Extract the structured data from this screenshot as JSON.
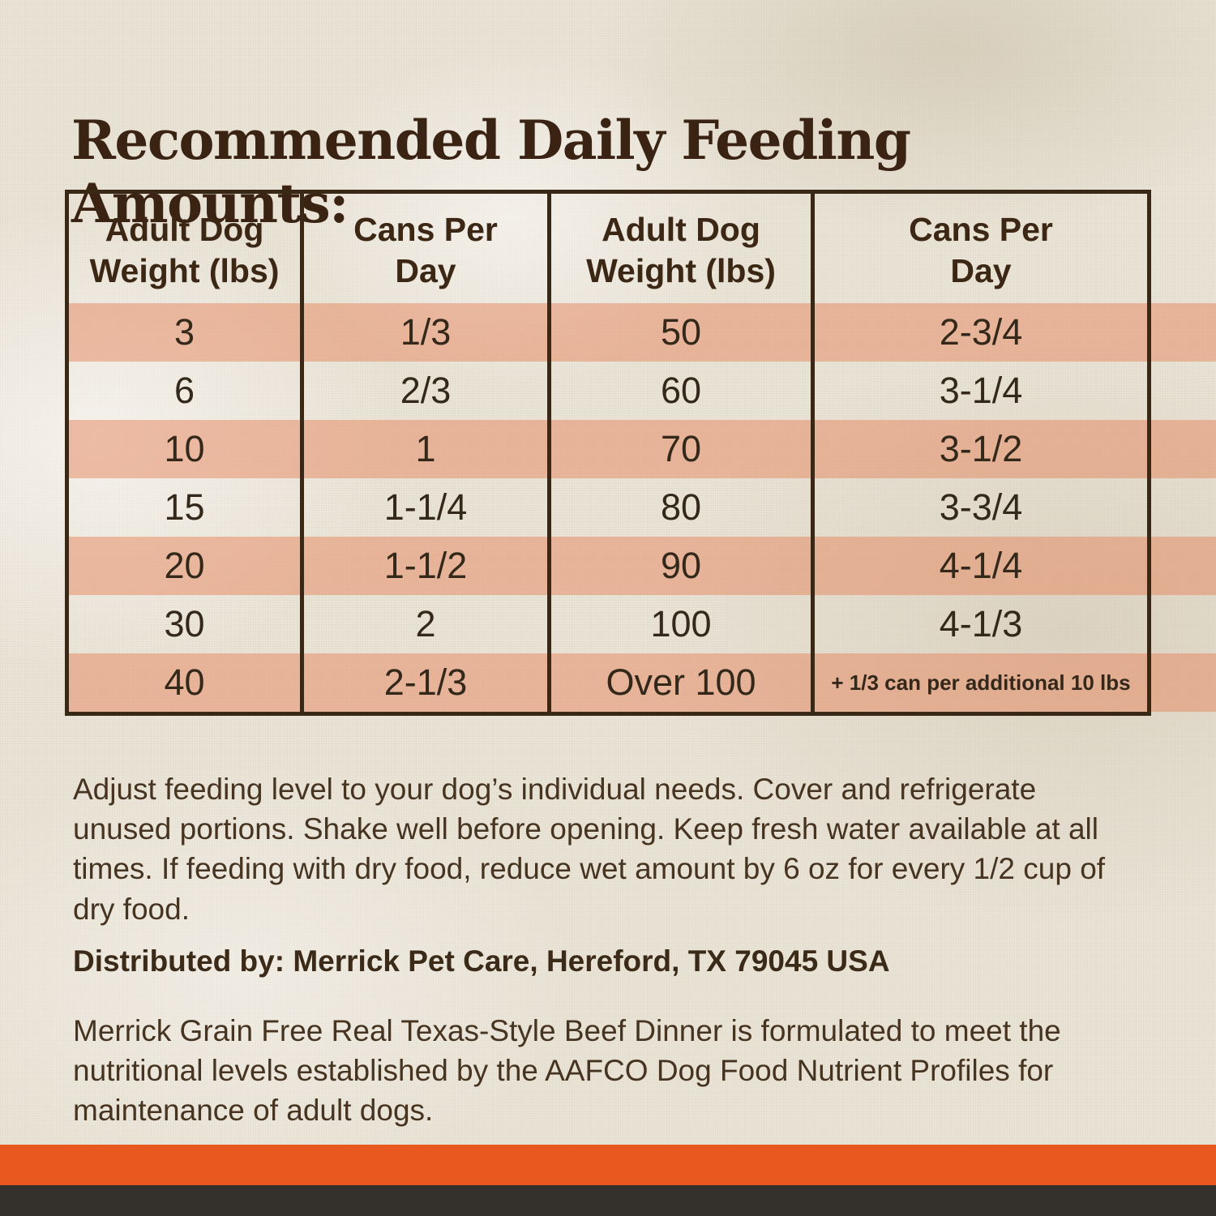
{
  "page": {
    "title": "Recommended Daily Feeding Amounts:"
  },
  "colors": {
    "text_brown": "#3A2313",
    "table_border_brown": "#3A2817",
    "stripe_salmon": "#EFAE8D",
    "background_cream": "#EAE4D7",
    "footer_orange": "#E8581F",
    "footer_dark": "#34302B"
  },
  "table": {
    "headers": [
      "Adult Dog\nWeight (lbs)",
      "Cans Per\nDay",
      "Adult Dog\nWeight (lbs)",
      "Cans Per\nDay"
    ],
    "rows": [
      [
        "3",
        "1/3",
        "50",
        "2-3/4"
      ],
      [
        "6",
        "2/3",
        "60",
        "3-1/4"
      ],
      [
        "10",
        "1",
        "70",
        "3-1/2"
      ],
      [
        "15",
        "1-1/4",
        "80",
        "3-3/4"
      ],
      [
        "20",
        "1-1/2",
        "90",
        "4-1/4"
      ],
      [
        "30",
        "2",
        "100",
        "4-1/3"
      ],
      [
        "40",
        "2-1/3",
        "Over 100",
        "+ 1/3 can per additional 10 lbs"
      ]
    ]
  },
  "notes": {
    "adjust": "Adjust feeding level to your dog’s individual needs. Cover and refrigerate unused portions. Shake well before opening. Keep fresh water available at all times. If feeding with dry food, reduce wet amount by 6 oz for every 1/2 cup of dry food.",
    "distributed": "Distributed by: Merrick Pet Care, Hereford, TX 79045 USA",
    "aafco": "Merrick Grain Free Real Texas-Style Beef Dinner is formulated to meet the nutritional levels established by the AAFCO Dog Food Nutrient Profiles for maintenance of adult dogs."
  }
}
